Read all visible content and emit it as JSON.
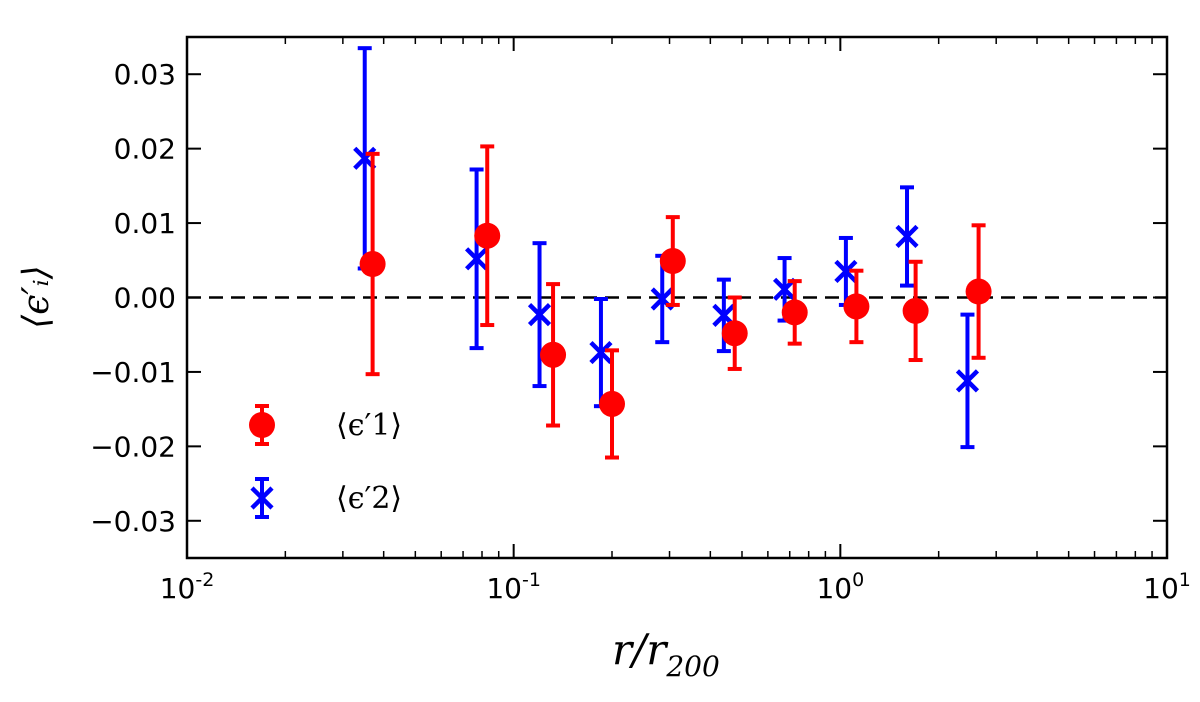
{
  "chart_data": {
    "type": "scatter",
    "x_scale": "log",
    "xlim": [
      0.01,
      10
    ],
    "ylim": [
      -0.035,
      0.035
    ],
    "xlabel": "r/r200",
    "xlabel_main": "r/r",
    "xlabel_sub": "200",
    "ylabel": "⟨ϵ′ᵢ⟩",
    "x_tick_labels": [
      "10-2",
      "10-1",
      "100",
      "101"
    ],
    "x_tick_values": [
      0.01,
      0.1,
      1,
      10
    ],
    "x_tick_base": "10",
    "x_tick_exponents": [
      "-2",
      "-1",
      "0",
      "1"
    ],
    "y_ticks": [
      0.03,
      0.02,
      0.01,
      0.0,
      -0.01,
      -0.02,
      -0.03
    ],
    "y_tick_labels": [
      "0.03",
      "0.02",
      "0.01",
      "0.00",
      "−0.01",
      "−0.02",
      "−0.03"
    ],
    "reference_line": {
      "y": 0.0,
      "style": "dashed",
      "color": "#000000"
    },
    "legend_position": "lower-left",
    "series": [
      {
        "name": "⟨ϵ′1⟩",
        "marker": "circle",
        "color": "#ff0000",
        "x": [
          0.037,
          0.083,
          0.132,
          0.2,
          0.307,
          0.475,
          0.725,
          1.12,
          1.7,
          2.65
        ],
        "y": [
          0.0045,
          0.0083,
          -0.0077,
          -0.0143,
          0.0049,
          -0.0048,
          -0.002,
          -0.0012,
          -0.0018,
          0.0008
        ],
        "err": [
          0.0148,
          0.012,
          0.0095,
          0.0072,
          0.0059,
          0.0048,
          0.0042,
          0.0048,
          0.0066,
          0.0089
        ]
      },
      {
        "name": "⟨ϵ′2⟩",
        "marker": "x",
        "color": "#0000ff",
        "x": [
          0.035,
          0.077,
          0.12,
          0.185,
          0.285,
          0.44,
          0.675,
          1.04,
          1.6,
          2.45
        ],
        "y": [
          0.0187,
          0.0052,
          -0.0023,
          -0.0074,
          -0.0002,
          -0.0024,
          0.0011,
          0.0035,
          0.0082,
          -0.0112
        ],
        "err": [
          0.0148,
          0.012,
          0.0096,
          0.0072,
          0.0058,
          0.0048,
          0.0042,
          0.0045,
          0.0066,
          0.0089
        ]
      }
    ]
  }
}
